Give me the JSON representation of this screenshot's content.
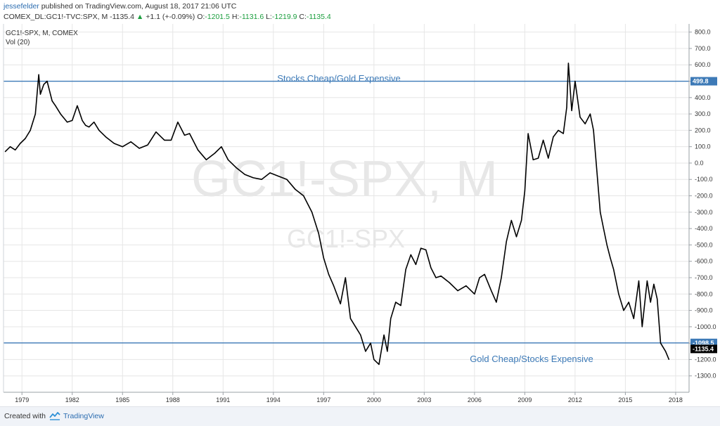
{
  "header": {
    "author": "jessefelder",
    "published": "published on TradingView.com, August 18, 2017 21:06 UTC",
    "symbol_line": "COMEX_DL:GC1!-TVC:SPX, M",
    "last": "-1135.4",
    "change": "+1.1 (+-0.09%)",
    "o_label": "O:",
    "o": "-1201.5",
    "h_label": "H:",
    "h": "-1131.6",
    "l_label": "L:",
    "l": "-1219.9",
    "c_label": "C:",
    "c": "-1135.4"
  },
  "legend": {
    "series": "GC1!-SPX, M, COMEX",
    "volume": "Vol (20)"
  },
  "watermark": {
    "big": "GC1!-SPX, M",
    "small": "GC1!-SPX"
  },
  "annotations": {
    "top": "Stocks Cheap/Gold Expensive",
    "bottom": "Gold Cheap/Stocks Expensive"
  },
  "footer": {
    "created_with": "Created with",
    "brand": "TradingView"
  },
  "colors": {
    "line": "#000000",
    "hline": "#3d7ab7",
    "grid": "#e6e6e6",
    "last_box": "#000000",
    "up": "#1b9e3e"
  },
  "chart_data": {
    "type": "line",
    "title": "",
    "xlabel": "",
    "ylabel": "",
    "xlim": [
      1977.9,
      2018.8
    ],
    "ylim": [
      -1400,
      850
    ],
    "y_ticks": [
      -1300,
      -1200,
      -1100,
      -1000,
      -900,
      -800,
      -700,
      -600,
      -500,
      -400,
      -300,
      -200,
      -100,
      0,
      100,
      200,
      300,
      400,
      500,
      600,
      700,
      800
    ],
    "y_tick_labels": [
      "-1300.0",
      "-1200.0",
      "-1100.0",
      "-1000.0",
      "-900.0",
      "-800.0",
      "-700.0",
      "-600.0",
      "-500.0",
      "-400.0",
      "-300.0",
      "-200.0",
      "-100.0",
      "0.0",
      "100.0",
      "200.0",
      "300.0",
      "400.0",
      "500.0",
      "600.0",
      "700.0",
      "800.0"
    ],
    "x_ticks": [
      "1979",
      "1982",
      "1985",
      "1988",
      "1991",
      "1994",
      "1997",
      "2000",
      "2003",
      "2006",
      "2009",
      "2012",
      "2015",
      "2018"
    ],
    "horizontal_lines": [
      {
        "value": 499.8,
        "label": "499.8"
      },
      {
        "value": -1098.5,
        "label": "-1098.5"
      }
    ],
    "last_value_label": "-1135.4",
    "grid": true,
    "series": [
      {
        "x": [
          1978.0,
          1978.3,
          1978.6,
          1978.9,
          1979.2,
          1979.5,
          1979.8,
          1980.0,
          1980.1,
          1980.3,
          1980.5,
          1980.8,
          1981.0,
          1981.3,
          1981.7,
          1982.0,
          1982.3,
          1982.6,
          1982.8,
          1983.0,
          1983.3,
          1983.6,
          1984.0,
          1984.5,
          1985.0,
          1985.5,
          1986.0,
          1986.5,
          1987.0,
          1987.5,
          1987.9,
          1988.3,
          1988.7,
          1989.0,
          1989.5,
          1990.0,
          1990.5,
          1990.9,
          1991.3,
          1991.8,
          1992.3,
          1992.8,
          1993.3,
          1993.8,
          1994.3,
          1994.8,
          1995.3,
          1995.8,
          1996.3,
          1996.7,
          1997.0,
          1997.3,
          1997.6,
          1998.0,
          1998.3,
          1998.6,
          1998.9,
          1999.2,
          1999.5,
          1999.8,
          2000.0,
          2000.3,
          2000.6,
          2000.8,
          2001.0,
          2001.3,
          2001.6,
          2001.9,
          2002.2,
          2002.5,
          2002.8,
          2003.1,
          2003.4,
          2003.7,
          2004.0,
          2004.5,
          2005.0,
          2005.5,
          2006.0,
          2006.3,
          2006.6,
          2007.0,
          2007.3,
          2007.6,
          2007.9,
          2008.2,
          2008.5,
          2008.8,
          2009.0,
          2009.2,
          2009.5,
          2009.8,
          2010.1,
          2010.4,
          2010.7,
          2011.0,
          2011.3,
          2011.5,
          2011.6,
          2011.8,
          2012.0,
          2012.3,
          2012.6,
          2012.9,
          2013.1,
          2013.3,
          2013.5,
          2013.7,
          2013.9,
          2014.1,
          2014.3,
          2014.6,
          2014.9,
          2015.2,
          2015.5,
          2015.8,
          2016.0,
          2016.3,
          2016.5,
          2016.7,
          2016.9,
          2017.1,
          2017.4,
          2017.6
        ],
        "y": [
          70,
          100,
          80,
          120,
          150,
          200,
          300,
          540,
          420,
          480,
          500,
          380,
          350,
          300,
          250,
          260,
          350,
          260,
          230,
          220,
          250,
          200,
          160,
          120,
          100,
          130,
          90,
          110,
          190,
          140,
          140,
          250,
          170,
          180,
          80,
          20,
          60,
          100,
          20,
          -30,
          -70,
          -90,
          -100,
          -60,
          -80,
          -100,
          -160,
          -200,
          -300,
          -430,
          -580,
          -680,
          -750,
          -860,
          -700,
          -950,
          -1000,
          -1050,
          -1150,
          -1100,
          -1200,
          -1230,
          -1050,
          -1150,
          -950,
          -850,
          -870,
          -650,
          -560,
          -620,
          -520,
          -530,
          -640,
          -700,
          -690,
          -730,
          -780,
          -750,
          -800,
          -700,
          -680,
          -780,
          -850,
          -700,
          -480,
          -350,
          -450,
          -350,
          -170,
          180,
          20,
          30,
          140,
          30,
          160,
          200,
          180,
          340,
          610,
          320,
          500,
          280,
          240,
          300,
          200,
          -50,
          -300,
          -400,
          -500,
          -580,
          -650,
          -800,
          -900,
          -850,
          -950,
          -720,
          -1000,
          -720,
          -850,
          -740,
          -830,
          -1100,
          -1150,
          -1200
        ]
      }
    ]
  }
}
